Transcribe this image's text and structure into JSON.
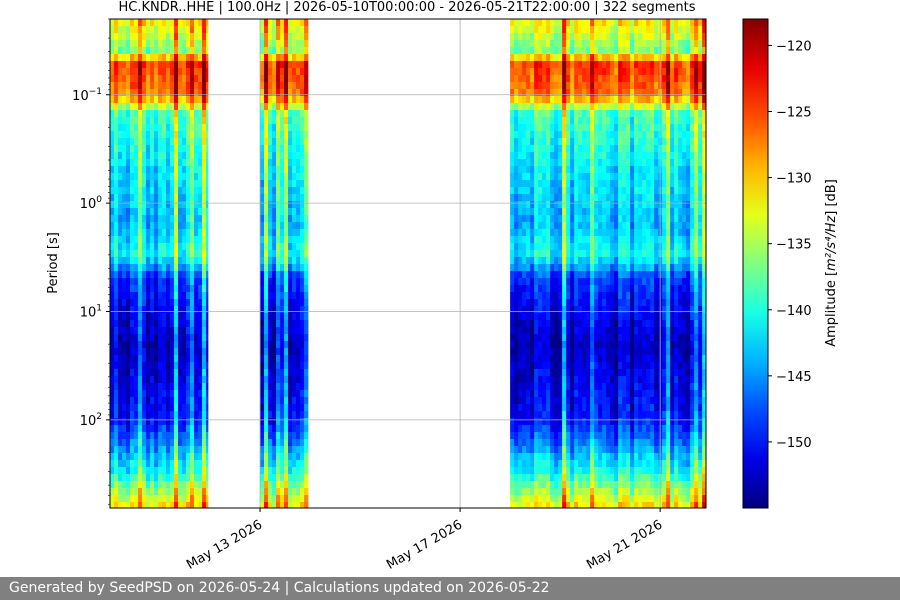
{
  "chart_data": {
    "type": "heatmap",
    "title": "HC.KNDR..HHE | 100.0Hz | 2026-05-10T00:00:00 - 2026-05-21T22:00:00 | 322 segments",
    "ylabel": "Period [s]",
    "y_scale": "log",
    "y_inverted": true,
    "ylim_period_s": [
      0.02,
      650
    ],
    "y_ticks": [
      {
        "value": 0.1,
        "base": "10",
        "exp": "−1"
      },
      {
        "value": 1,
        "base": "10",
        "exp": "0"
      },
      {
        "value": 10,
        "base": "10",
        "exp": "1"
      },
      {
        "value": 100,
        "base": "10",
        "exp": "2"
      }
    ],
    "xlim": [
      "2026-05-10T00:00:00",
      "2026-05-21T22:00:00"
    ],
    "x_ticks": [
      {
        "date": "2026-05-13",
        "label": "May 13 2026"
      },
      {
        "date": "2026-05-17",
        "label": "May 17 2026"
      },
      {
        "date": "2026-05-21",
        "label": "May 21 2026"
      }
    ],
    "grid": true,
    "data_intervals": [
      {
        "start": "2026-05-10T00:00:00",
        "end": "2026-05-11T23:00:00"
      },
      {
        "start": "2026-05-13T00:00:00",
        "end": "2026-05-13T23:00:00"
      },
      {
        "start": "2026-05-18T00:00:00",
        "end": "2026-05-21T22:00:00"
      }
    ],
    "colorbar": {
      "label_prefix": "Amplitude [",
      "label_math": "m²/s⁴/Hz",
      "label_suffix": "] [dB]",
      "colormap": "jet",
      "range_db": [
        -155,
        -118
      ],
      "ticks": [
        "−120",
        "−125",
        "−130",
        "−135",
        "−140",
        "−145",
        "−150"
      ],
      "tick_values": [
        -120,
        -125,
        -130,
        -135,
        -140,
        -145,
        -150
      ]
    },
    "spectrum_profile_db": [
      {
        "period_s": 0.02,
        "db": -131
      },
      {
        "period_s": 0.04,
        "db": -137
      },
      {
        "period_s": 0.05,
        "db": -125
      },
      {
        "period_s": 0.1,
        "db": -127
      },
      {
        "period_s": 0.15,
        "db": -139
      },
      {
        "period_s": 0.5,
        "db": -142
      },
      {
        "period_s": 1.5,
        "db": -144
      },
      {
        "period_s": 3,
        "db": -141
      },
      {
        "period_s": 5,
        "db": -149
      },
      {
        "period_s": 20,
        "db": -153
      },
      {
        "period_s": 100,
        "db": -150
      },
      {
        "period_s": 300,
        "db": -141
      },
      {
        "period_s": 650,
        "db": -131
      }
    ]
  },
  "footer": {
    "text": "Generated by SeedPSD on 2026-05-24 | Calculations updated on 2026-05-22"
  }
}
